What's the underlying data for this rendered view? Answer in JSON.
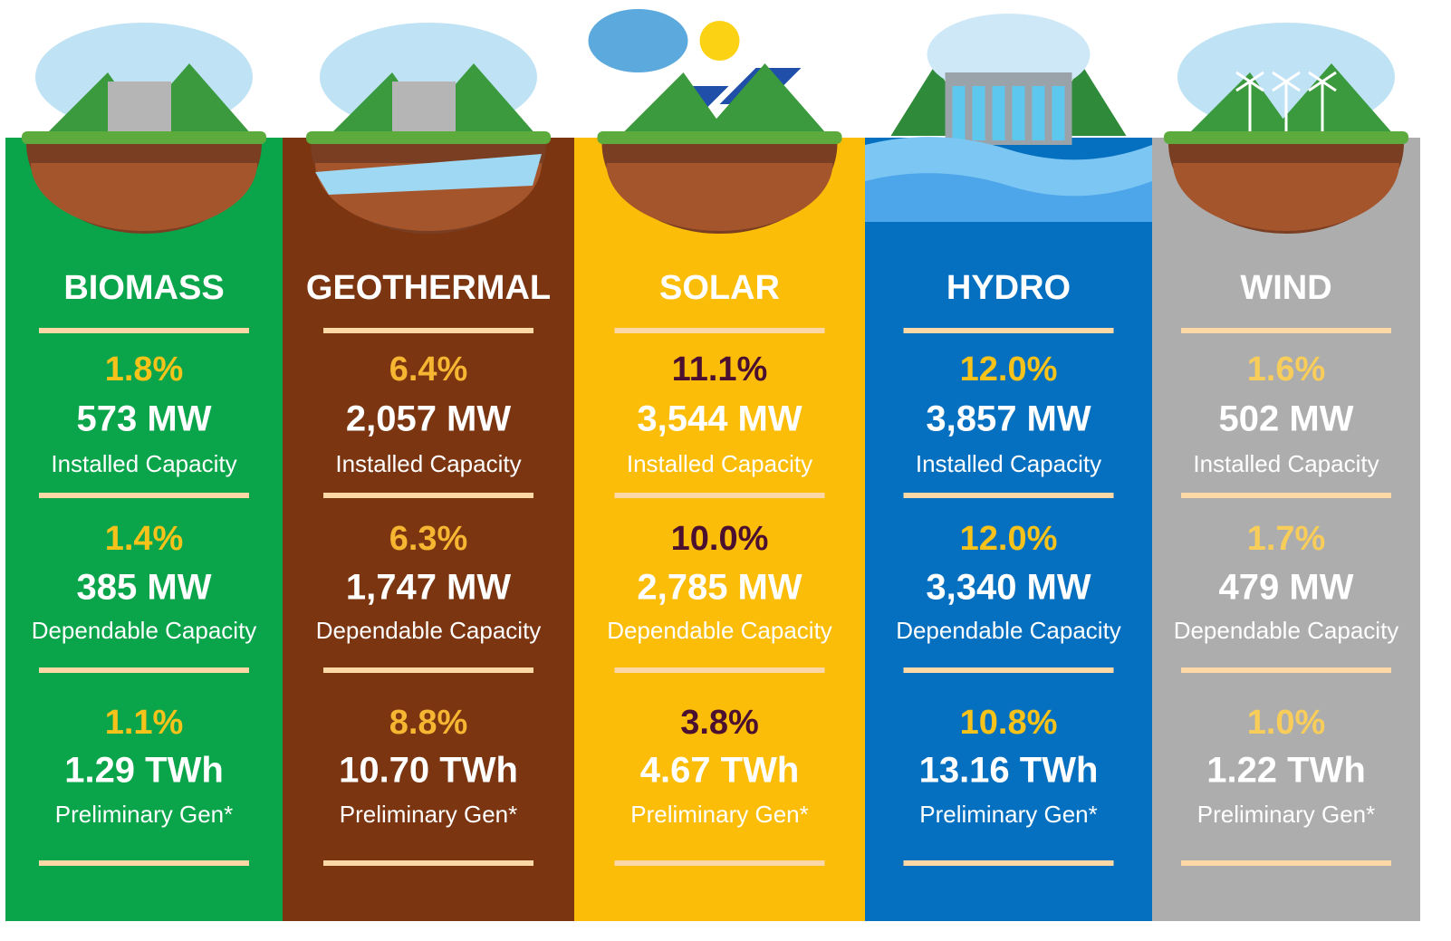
{
  "columns": [
    {
      "name": "BIOMASS",
      "stats": [
        {
          "share": "1.8%",
          "amount": "573 MW",
          "label": "Installed Capacity"
        },
        {
          "share": "1.4%",
          "amount": "385 MW",
          "label": "Dependable Capacity"
        },
        {
          "share": "1.1%",
          "amount": "1.29 TWh",
          "label": "Preliminary Gen*"
        }
      ]
    },
    {
      "name": "GEOTHERMAL",
      "stats": [
        {
          "share": "6.4%",
          "amount": "2,057 MW",
          "label": "Installed Capacity"
        },
        {
          "share": "6.3%",
          "amount": "1,747 MW",
          "label": "Dependable Capacity"
        },
        {
          "share": "8.8%",
          "amount": "10.70 TWh",
          "label": "Preliminary Gen*"
        }
      ]
    },
    {
      "name": "SOLAR",
      "stats": [
        {
          "share": "11.1%",
          "amount": "3,544 MW",
          "label": "Installed Capacity"
        },
        {
          "share": "10.0%",
          "amount": "2,785 MW",
          "label": "Dependable Capacity"
        },
        {
          "share": "3.8%",
          "amount": "4.67 TWh",
          "label": "Preliminary Gen*"
        }
      ]
    },
    {
      "name": "HYDRO",
      "stats": [
        {
          "share": "12.0%",
          "amount": "3,857 MW",
          "label": "Installed Capacity"
        },
        {
          "share": "12.0%",
          "amount": "3,340 MW",
          "label": "Dependable Capacity"
        },
        {
          "share": "10.8%",
          "amount": "13.16 TWh",
          "label": "Preliminary Gen*"
        }
      ]
    },
    {
      "name": "WIND",
      "stats": [
        {
          "share": "1.6%",
          "amount": "502 MW",
          "label": "Installed Capacity"
        },
        {
          "share": "1.7%",
          "amount": "479 MW",
          "label": "Dependable Capacity"
        },
        {
          "share": "1.0%",
          "amount": "1.22 TWh",
          "label": "Preliminary Gen*"
        }
      ]
    }
  ]
}
